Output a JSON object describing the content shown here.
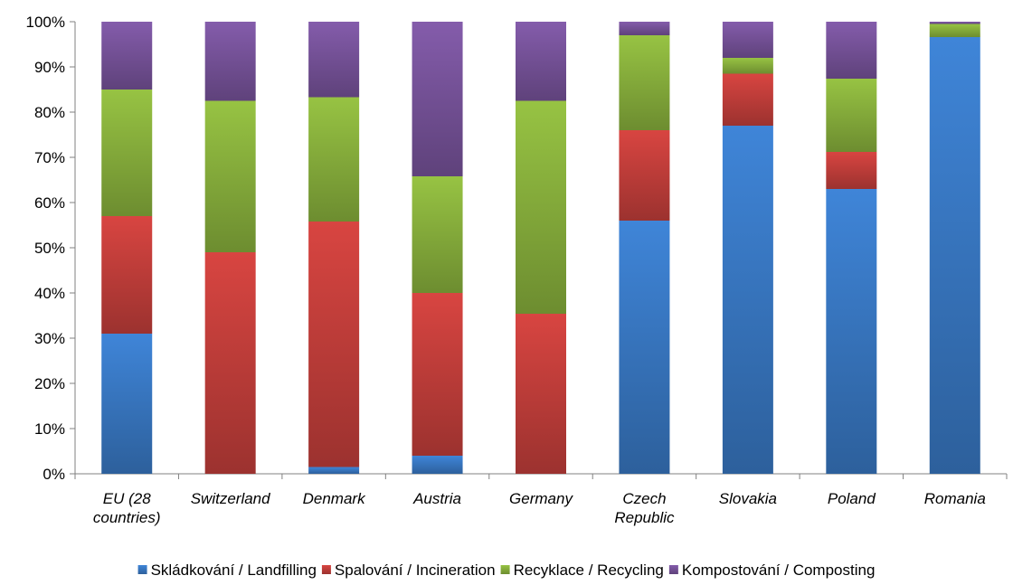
{
  "chart_data": {
    "type": "bar",
    "stacked": true,
    "percent_stacked": true,
    "categories": [
      [
        "EU (28",
        "countries)"
      ],
      [
        "Switzerland"
      ],
      [
        "Denmark"
      ],
      [
        "Austria"
      ],
      [
        "Germany"
      ],
      [
        "Czech",
        "Republic"
      ],
      [
        "Slovakia"
      ],
      [
        "Poland"
      ],
      [
        "Romania"
      ]
    ],
    "series": [
      {
        "name": "Skládkování / Landfilling",
        "color": "#3a7bc8",
        "values": [
          31,
          0,
          1.5,
          4,
          0,
          56,
          77,
          63,
          96.6
        ]
      },
      {
        "name": "Spalování / Incineration",
        "color": "#c8403c",
        "values": [
          26,
          49,
          54.3,
          36,
          35.4,
          20,
          11.5,
          8.2,
          0
        ]
      },
      {
        "name": "Recyklace / Recycling",
        "color": "#8cb53e",
        "values": [
          28,
          33.5,
          27.5,
          25.8,
          47.1,
          21,
          3.5,
          16.2,
          2.9
        ]
      },
      {
        "name": "Kompostování / Composting",
        "color": "#7a559e",
        "values": [
          15,
          17.5,
          16.7,
          34.2,
          17.5,
          3,
          8,
          12.6,
          0.5
        ]
      }
    ],
    "yticks": [
      "0%",
      "10%",
      "20%",
      "30%",
      "40%",
      "50%",
      "60%",
      "70%",
      "80%",
      "90%",
      "100%"
    ],
    "ylim": [
      0,
      100
    ],
    "grid": false,
    "legend_position": "bottom",
    "title": "",
    "xlabel": "",
    "ylabel": ""
  }
}
